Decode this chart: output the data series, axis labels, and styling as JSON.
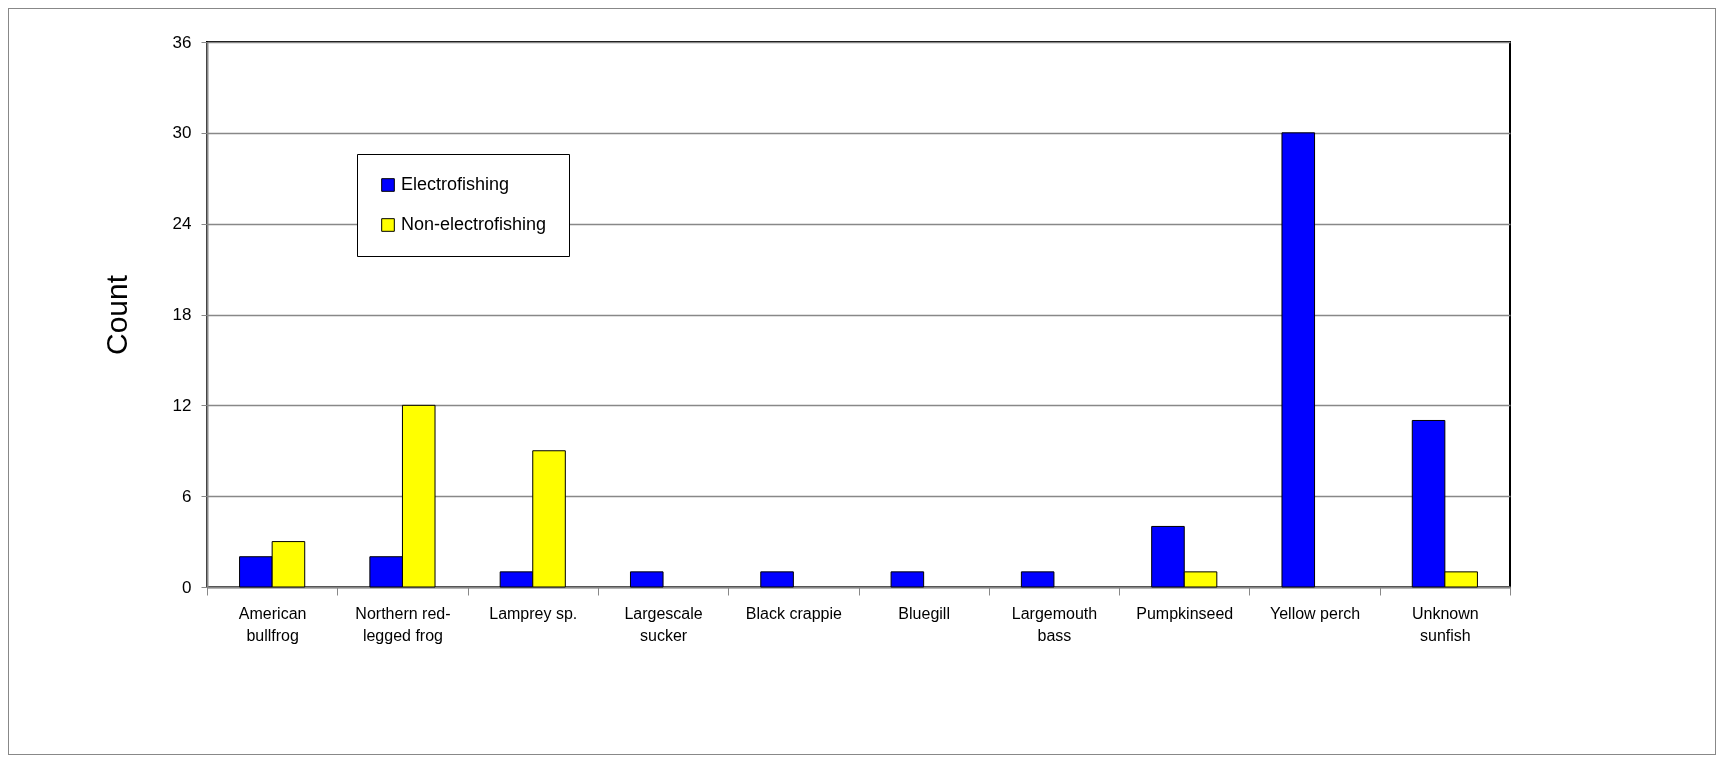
{
  "chart_data": {
    "type": "bar",
    "ylabel": "Count",
    "categories": [
      "American bullfrog",
      "Northern red-legged frog",
      "Lamprey sp.",
      "Largescale sucker",
      "Black crappie",
      "Bluegill",
      "Largemouth bass",
      "Pumpkinseed",
      "Yellow perch",
      "Unknown sunfish"
    ],
    "series": [
      {
        "name": "Electrofishing",
        "color": "#0000ff",
        "values": [
          2,
          2,
          1,
          1,
          1,
          1,
          1,
          4,
          30,
          11
        ]
      },
      {
        "name": "Non-electrofishing",
        "color": "#ffff00",
        "values": [
          3,
          12,
          9,
          0,
          0,
          0,
          0,
          1,
          0,
          1
        ]
      }
    ],
    "ylim": [
      0,
      36
    ],
    "yticks": [
      0,
      6,
      12,
      18,
      24,
      30,
      36
    ],
    "grid": "y",
    "legend": "top left"
  }
}
